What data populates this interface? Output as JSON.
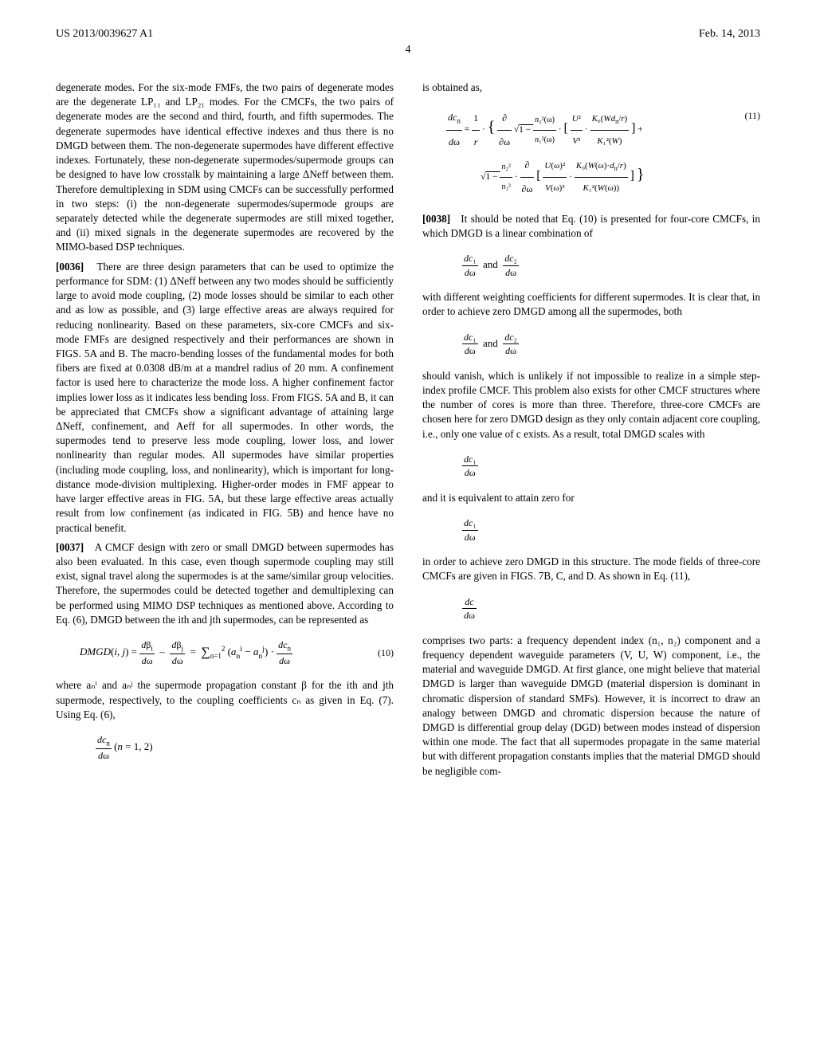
{
  "header": {
    "left": "US 2013/0039627 A1",
    "right": "Feb. 14, 2013"
  },
  "pageNumber": "4",
  "leftColumn": {
    "p1": "degenerate modes. For the six-mode FMFs, the two pairs of degenerate modes are the degenerate LP₁₁ and LP₂₁ modes. For the CMCFs, the two pairs of degenerate modes are the second and third, fourth, and fifth supermodes. The degenerate supermodes have identical effective indexes and thus there is no DMGD between them. The non-degenerate supermodes have different effective indexes. Fortunately, these non-degenerate supermodes/supermode groups can be designed to have low crosstalk by maintaining a large ΔNeff between them. Therefore demultiplexing in SDM using CMCFs can be successfully performed in two steps: (i) the non-degenerate supermodes/supermode groups are separately detected while the degenerate supermodes are still mixed together, and (ii) mixed signals in the degenerate supermodes are recovered by the MIMO-based DSP techniques.",
    "p2bracket": "[0036]",
    "p2": "There are three design parameters that can be used to optimize the performance for SDM: (1) ΔNeff between any two modes should be sufficiently large to avoid mode coupling, (2) mode losses should be similar to each other and as low as possible, and (3) large effective areas are always required for reducing nonlinearity. Based on these parameters, six-core CMCFs and six-mode FMFs are designed respectively and their performances are shown in FIGS. 5A and B. The macro-bending losses of the fundamental modes for both fibers are fixed at 0.0308 dB/m at a mandrel radius of 20 mm. A confinement factor is used here to characterize the mode loss. A higher confinement factor implies lower loss as it indicates less bending loss. From FIGS. 5A and B, it can be appreciated that CMCFs show a significant advantage of attaining large ΔNeff, confinement, and Aeff for all supermodes. In other words, the supermodes tend to preserve less mode coupling, lower loss, and lower nonlinearity than regular modes. All supermodes have similar properties (including mode coupling, loss, and nonlinearity), which is important for long-distance mode-division multiplexing. Higher-order modes in FMF appear to have larger effective areas in FIG. 5A, but these large effective areas actually result from low confinement (as indicated in FIG. 5B) and hence have no practical benefit.",
    "p3bracket": "[0037]",
    "p3": "A CMCF design with zero or small DMGD between supermodes has also been evaluated. In this case, even though supermode coupling may still exist, signal travel along the supermodes is at the same/similar group velocities. Therefore, the supermodes could be detected together and demultiplexing can be performed using MIMO DSP techniques as mentioned above. According to Eq. (6), DMGD between the ith and jth supermodes, can be represented as",
    "eq10num": "(10)",
    "p4": "where aₙⁱ and aₙʲ the supermode propagation constant β for the ith and jth supermode, respectively, to the coupling coefficients cₙ as given in Eq. (7). Using Eq. (6),"
  },
  "rightColumn": {
    "p1": "is obtained as,",
    "eq11num": "(11)",
    "p2bracket": "[0038]",
    "p2": "It should be noted that Eq. (10) is presented for four-core CMCFs, in which DMGD is a linear combination of",
    "p3": "with different weighting coefficients for different supermodes. It is clear that, in order to achieve zero DMGD among all the supermodes, both",
    "p4": "should vanish, which is unlikely if not impossible to realize in a simple step-index profile CMCF. This problem also exists for other CMCF structures where the number of cores is more than three. Therefore, three-core CMCFs are chosen here for zero DMGD design as they only contain adjacent core coupling, i.e., only one value of c exists. As a result, total DMGD scales with",
    "p5": "and it is equivalent to attain zero for",
    "p6": "in order to achieve zero DMGD in this structure. The mode fields of three-core CMCFs are given in FIGS. 7B, C, and D. As shown in Eq. (11),",
    "p7": "comprises two parts: a frequency dependent index (n₁, n₂) component and a frequency dependent waveguide parameters (V, U, W) component, i.e., the material and waveguide DMGD. At first glance, one might believe that material DMGD is larger than waveguide DMGD (material dispersion is dominant in chromatic dispersion of standard SMFs). However, it is incorrect to draw an analogy between DMGD and chromatic dispersion because the nature of DMGD is differential group delay (DGD) between modes instead of dispersion within one mode. The fact that all supermodes propagate in the same material but with different propagation constants implies that the material DMGD should be negligible com-"
  }
}
